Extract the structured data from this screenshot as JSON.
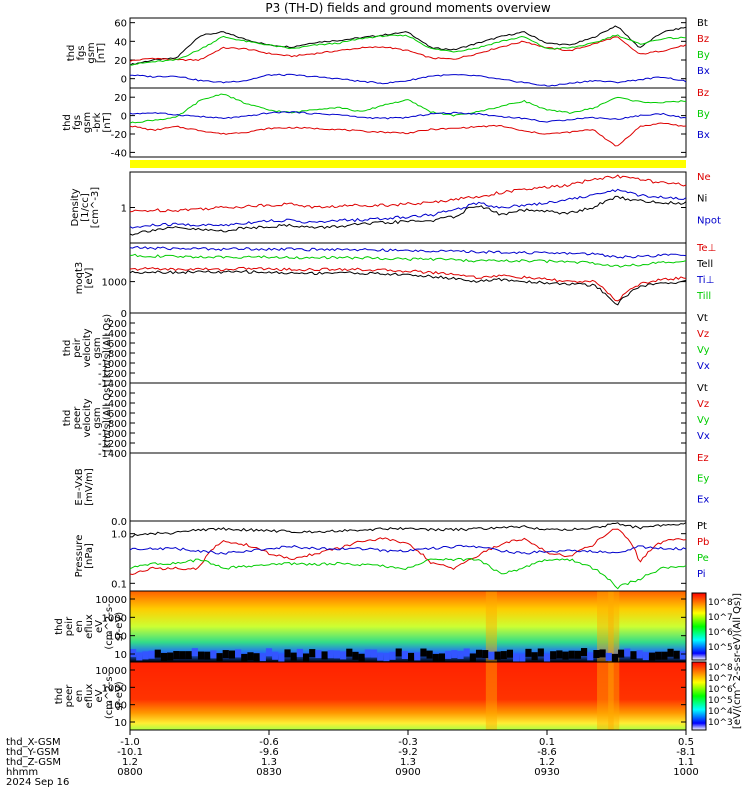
{
  "title": "P3 (TH-D) fields and ground moments overview",
  "date_label": "2024 Sep 16",
  "colors": {
    "black": "#000000",
    "red": "#dd0000",
    "green": "#00cc00",
    "blue": "#0000cc",
    "yellow": "#ffff00"
  },
  "chart_data": [
    {
      "type": "line",
      "ylabel": [
        "thd",
        "fgs",
        "gsm",
        "[nT]"
      ],
      "ylim": [
        -10,
        65
      ],
      "ticks": [
        "60",
        "40",
        "20",
        "0"
      ],
      "series": [
        {
          "name": "Bt",
          "color": "black",
          "values": [
            15,
            20,
            22,
            46,
            50,
            42,
            36,
            34,
            39,
            41,
            44,
            47,
            50,
            33,
            31,
            38,
            45,
            50,
            38,
            36,
            44,
            57,
            33,
            50,
            55
          ]
        },
        {
          "name": "Bz",
          "color": "red",
          "values": [
            19,
            22,
            20,
            20,
            33,
            32,
            27,
            24,
            27,
            30,
            33,
            34,
            30,
            22,
            21,
            27,
            34,
            40,
            33,
            30,
            37,
            45,
            26,
            30,
            36
          ]
        },
        {
          "name": "By",
          "color": "green",
          "values": [
            15,
            18,
            20,
            31,
            45,
            40,
            36,
            32,
            36,
            38,
            43,
            46,
            46,
            32,
            29,
            33,
            40,
            45,
            32,
            33,
            38,
            47,
            37,
            43,
            44
          ]
        },
        {
          "name": "Bx",
          "color": "blue",
          "values": [
            4,
            2,
            3,
            -2,
            -4,
            -2,
            4,
            4,
            2,
            0,
            -3,
            -5,
            -2,
            3,
            4,
            3,
            -1,
            -4,
            -8,
            -5,
            -2,
            -4,
            -1,
            2,
            -3
          ]
        }
      ]
    },
    {
      "type": "line",
      "ylabel": [
        "thd",
        "fgs",
        "gsm",
        "-brk",
        "[nT]"
      ],
      "ylim": [
        -45,
        30
      ],
      "ticks": [
        "20",
        "0",
        "-20",
        "-40"
      ],
      "series": [
        {
          "name": "Bz",
          "color": "red",
          "values": [
            -11,
            -16,
            -12,
            -16,
            -20,
            -18,
            -14,
            -13,
            -14,
            -15,
            -17,
            -18,
            -19,
            -15,
            -14,
            -12,
            -11,
            -17,
            -20,
            -18,
            -15,
            -34,
            -12,
            -8,
            -12
          ]
        },
        {
          "name": "By",
          "color": "green",
          "values": [
            -8,
            -5,
            -2,
            16,
            24,
            13,
            6,
            3,
            7,
            9,
            4,
            12,
            17,
            4,
            0,
            4,
            10,
            16,
            6,
            3,
            8,
            20,
            15,
            14,
            16
          ]
        },
        {
          "name": "Bx",
          "color": "blue",
          "values": [
            2,
            3,
            1,
            -1,
            -3,
            -1,
            3,
            4,
            2,
            1,
            -2,
            -3,
            -2,
            2,
            3,
            2,
            -1,
            -3,
            -7,
            -4,
            -2,
            -4,
            0,
            2,
            -3
          ]
        }
      ]
    },
    {
      "type": "line",
      "ylabel": [
        "Density",
        "[1/cc]",
        "[cm^-3]"
      ],
      "ylim": [
        0.25,
        4
      ],
      "ticks": [
        "1"
      ],
      "series": [
        {
          "name": "Ne",
          "color": "red",
          "values": [
            0.85,
            0.9,
            0.9,
            0.95,
            1.0,
            1.05,
            1.1,
            1.15,
            1.0,
            1.05,
            1.1,
            1.1,
            1.15,
            1.2,
            1.4,
            1.5,
            1.8,
            2.0,
            2.2,
            2.4,
            3.0,
            3.4,
            3.0,
            2.6,
            2.4
          ]
        },
        {
          "name": "Ni",
          "color": "black",
          "values": [
            0.35,
            0.42,
            0.45,
            0.42,
            0.4,
            0.45,
            0.48,
            0.5,
            0.45,
            0.48,
            0.52,
            0.55,
            0.58,
            0.6,
            0.7,
            1.1,
            0.75,
            0.9,
            0.85,
            0.8,
            1.0,
            1.5,
            1.3,
            1.2,
            1.2
          ]
        },
        {
          "name": "Npot",
          "color": "blue",
          "values": [
            0.45,
            0.5,
            0.52,
            0.5,
            0.5,
            0.55,
            0.6,
            0.6,
            0.55,
            0.6,
            0.62,
            0.65,
            0.7,
            0.75,
            0.9,
            1.2,
            1.0,
            1.1,
            1.2,
            1.4,
            1.6,
            2.0,
            1.6,
            1.5,
            1.4
          ]
        }
      ]
    },
    {
      "type": "line",
      "ylabel": [
        "moqt3",
        "[eV]"
      ],
      "ylim": [
        250,
        5500
      ],
      "ticks": [
        "1000"
      ],
      "series": [
        {
          "name": "Te⊥",
          "color": "red",
          "values": [
            1700,
            1800,
            1700,
            1750,
            1700,
            1800,
            1750,
            1700,
            1700,
            1750,
            1700,
            1650,
            1600,
            1500,
            1400,
            1200,
            1300,
            1200,
            1100,
            1000,
            1000,
            400,
            900,
            1100,
            1200
          ]
        },
        {
          "name": "Tell",
          "color": "black",
          "values": [
            1500,
            1550,
            1500,
            1550,
            1500,
            1550,
            1500,
            1450,
            1450,
            1500,
            1450,
            1400,
            1350,
            1250,
            1150,
            1000,
            1100,
            1000,
            950,
            900,
            850,
            350,
            800,
            950,
            1000
          ]
        },
        {
          "name": "Ti⊥",
          "color": "blue",
          "values": [
            4500,
            4400,
            4300,
            4300,
            4200,
            4300,
            4200,
            4200,
            4100,
            4200,
            4100,
            4000,
            3900,
            3900,
            3800,
            3700,
            3700,
            3600,
            3500,
            3500,
            3400,
            3000,
            3000,
            3200,
            3300
          ]
        },
        {
          "name": "Till",
          "color": "green",
          "values": [
            3200,
            3100,
            3000,
            3000,
            2900,
            3000,
            2950,
            2900,
            2850,
            2900,
            2850,
            2800,
            2700,
            2700,
            2600,
            2500,
            2500,
            2500,
            2450,
            2400,
            2300,
            2000,
            2100,
            2300,
            2400
          ]
        }
      ]
    },
    {
      "type": "line",
      "ylabel": [
        "thd",
        "peir",
        "velocity",
        "gsm",
        "[km/s](All Qs)"
      ],
      "ylim": [
        -1400,
        0
      ],
      "ticks": [
        "0",
        "-200",
        "-400",
        "-600",
        "-800",
        "-1000",
        "-1200",
        "-1400"
      ],
      "series": [
        {
          "name": "Vt",
          "color": "black"
        },
        {
          "name": "Vz",
          "color": "red"
        },
        {
          "name": "Vy",
          "color": "green"
        },
        {
          "name": "Vx",
          "color": "blue"
        }
      ]
    },
    {
      "type": "line",
      "ylabel": [
        "thd",
        "peer",
        "velocity",
        "gsm",
        "[km/s](All Qs)"
      ],
      "ylim": [
        -1400,
        0
      ],
      "ticks": [
        "-200",
        "-400",
        "-600",
        "-800",
        "-1000",
        "-1200",
        "-1400"
      ],
      "series": [
        {
          "name": "Vt",
          "color": "black"
        },
        {
          "name": "Vz",
          "color": "red"
        },
        {
          "name": "Vy",
          "color": "green"
        },
        {
          "name": "Vx",
          "color": "blue"
        }
      ]
    },
    {
      "type": "line",
      "ylabel": [
        "E=-VxB",
        "[mV/m]"
      ],
      "ylim": [
        0,
        1
      ],
      "ticks": [
        "0.0"
      ],
      "series": [
        {
          "name": "Ez",
          "color": "red"
        },
        {
          "name": "Ey",
          "color": "green"
        },
        {
          "name": "Ex",
          "color": "blue"
        }
      ]
    },
    {
      "type": "line",
      "ylabel": [
        "Pressure",
        "[nPa]"
      ],
      "ylim": [
        0.07,
        1.8
      ],
      "ticks": [
        "1.0",
        "0.1"
      ],
      "series": [
        {
          "name": "Pt",
          "color": "black",
          "values": [
            0.9,
            1.0,
            1.05,
            1.2,
            1.25,
            1.2,
            1.15,
            1.1,
            1.1,
            1.15,
            1.2,
            1.25,
            1.3,
            1.2,
            1.2,
            1.25,
            1.3,
            1.4,
            1.2,
            1.2,
            1.3,
            1.6,
            1.3,
            1.5,
            1.6
          ]
        },
        {
          "name": "Pb",
          "color": "red",
          "values": [
            0.15,
            0.2,
            0.2,
            0.2,
            0.7,
            0.6,
            0.4,
            0.3,
            0.4,
            0.5,
            0.7,
            0.8,
            0.6,
            0.25,
            0.2,
            0.35,
            0.6,
            0.8,
            0.4,
            0.35,
            0.6,
            1.3,
            0.25,
            0.7,
            0.8
          ]
        },
        {
          "name": "Pe",
          "color": "green",
          "values": [
            0.2,
            0.25,
            0.25,
            0.3,
            0.2,
            0.22,
            0.24,
            0.25,
            0.24,
            0.25,
            0.24,
            0.22,
            0.2,
            0.3,
            0.3,
            0.3,
            0.15,
            0.2,
            0.3,
            0.3,
            0.2,
            0.08,
            0.12,
            0.2,
            0.22
          ]
        },
        {
          "name": "Pi",
          "color": "blue",
          "values": [
            0.5,
            0.5,
            0.5,
            0.45,
            0.4,
            0.45,
            0.5,
            0.55,
            0.5,
            0.5,
            0.5,
            0.45,
            0.45,
            0.5,
            0.55,
            0.55,
            0.45,
            0.4,
            0.45,
            0.45,
            0.45,
            0.4,
            0.55,
            0.5,
            0.5
          ]
        }
      ]
    },
    {
      "type": "heatmap",
      "ylabel": [
        "thd",
        "peir",
        "en",
        "eflux",
        "eV",
        "(cm^2-s-",
        "sr-eV)"
      ],
      "ticks": [
        "10000",
        "1000",
        "100",
        "10"
      ]
    },
    {
      "type": "heatmap",
      "ylabel": [
        "thd",
        "peer",
        "en",
        "eflux",
        "eV",
        "(cm^2-s-",
        "sr-eV)"
      ],
      "ticks": [
        "10000",
        "1000",
        "100",
        "10"
      ]
    }
  ],
  "colorbar": {
    "label": "[eV/(cm^2-s-sr-eV)(All Qs)]",
    "upper_ticks": [
      "10^8",
      "10^7",
      "10^6",
      "10^5"
    ],
    "lower_ticks": [
      "10^8",
      "10^7",
      "10^6",
      "10^5",
      "10^4",
      "10^3"
    ]
  },
  "xaxis": {
    "row_labels": [
      "thd_X-GSM",
      "thd_Y-GSM",
      "thd_Z-GSM",
      "hhmm"
    ],
    "columns": [
      [
        "-1.0",
        "-10.1",
        "1.2",
        "0800"
      ],
      [
        "-0.6",
        "-9.6",
        "1.3",
        "0830"
      ],
      [
        "-0.3",
        "-9.2",
        "1.3",
        "0900"
      ],
      [
        "0.1",
        "-8.6",
        "1.2",
        "0930"
      ],
      [
        "0.5",
        "-8.1",
        "1.1",
        "1000"
      ]
    ]
  }
}
